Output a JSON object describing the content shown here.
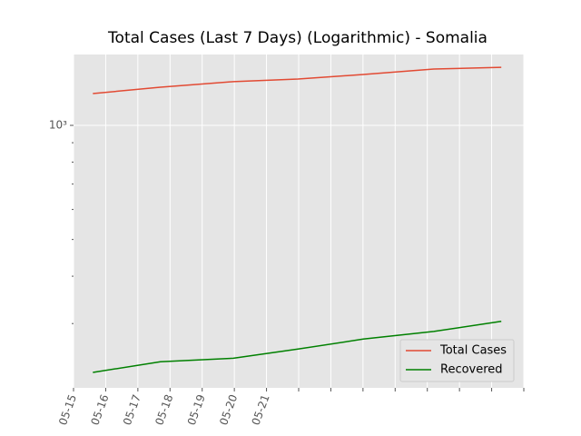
{
  "chart_data": {
    "type": "line",
    "title": "Total Cases (Last 7 Days) (Logarithmic) - Somalia",
    "x": [
      0.6,
      2.7,
      4.97,
      6.98,
      9.01,
      11.2,
      13.3
    ],
    "series": [
      {
        "name": "Total Cases",
        "color": "#E24A33",
        "values": [
          1213,
          1261,
          1304,
          1325,
          1362,
          1408,
          1423
        ]
      },
      {
        "name": "Recovered",
        "color": "#008000",
        "values": [
          223,
          238,
          243,
          257,
          273,
          286,
          304
        ]
      }
    ],
    "xlim": [
      0,
      14
    ],
    "xticks": [
      {
        "value": 0,
        "label": "05-15"
      },
      {
        "value": 1,
        "label": "05-16"
      },
      {
        "value": 2,
        "label": "05-17"
      },
      {
        "value": 3,
        "label": "05-18"
      },
      {
        "value": 4,
        "label": "05-19"
      },
      {
        "value": 5,
        "label": "05-20"
      },
      {
        "value": 6,
        "label": "05-21"
      },
      {
        "value": 7,
        "label": null
      },
      {
        "value": 8,
        "label": null
      },
      {
        "value": 9,
        "label": null
      },
      {
        "value": 10,
        "label": null
      },
      {
        "value": 11,
        "label": null
      },
      {
        "value": 12,
        "label": null
      },
      {
        "value": 13,
        "label": null
      },
      {
        "value": 14,
        "label": null
      }
    ],
    "ylim": [
      203,
      1538
    ],
    "log_y": true,
    "yticks": [
      {
        "value": 1000,
        "label": "10³"
      }
    ],
    "yticks_minor": [
      300,
      400,
      500,
      600,
      700,
      800,
      900
    ],
    "grid": true,
    "legend": "lower right"
  }
}
